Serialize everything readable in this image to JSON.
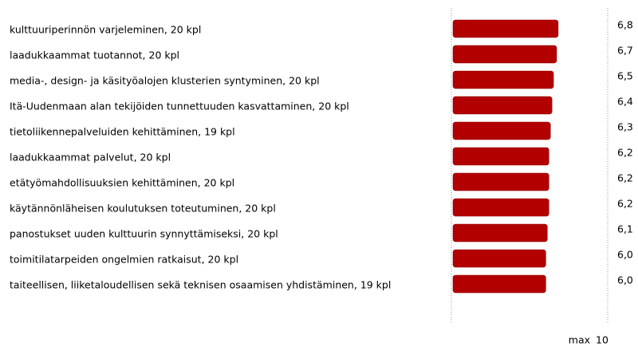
{
  "chart_data": {
    "type": "bar",
    "orientation": "horizontal",
    "categories": [
      "kulttuuriperinnön varjeleminen, 20 kpl",
      "laadukkaammat tuotannot, 20 kpl",
      "media-, design- ja käsityöalojen klusterien syntyminen, 20 kpl",
      "Itä-Uudenmaan alan tekijöiden tunnettuuden kasvattaminen, 20 kpl",
      "tietoliikennepalveluiden kehittäminen, 19 kpl",
      "laadukkaammat palvelut, 20 kpl",
      "etätyömahdollisuuksien kehittäminen, 20 kpl",
      "käytännönläheisen koulutuksen toteutuminen, 20 kpl",
      "panostukset uuden kulttuurin synnyttämiseksi, 20 kpl",
      "toimitilatarpeiden ongelmien ratkaisut, 20 kpl",
      "taiteellisen, liiketaloudellisen sekä teknisen osaamisen yhdistäminen, 19 kpl"
    ],
    "values": [
      6.8,
      6.7,
      6.5,
      6.4,
      6.3,
      6.2,
      6.2,
      6.2,
      6.1,
      6.0,
      6.0
    ],
    "value_labels": [
      "6,8",
      "6,7",
      "6,5",
      "6,4",
      "6,3",
      "6,2",
      "6,2",
      "6,2",
      "6,1",
      "6,0",
      "6,0"
    ],
    "color": "#b20000",
    "xlim": [
      0,
      10
    ],
    "xticks": [
      10
    ],
    "xlabel": "max"
  }
}
